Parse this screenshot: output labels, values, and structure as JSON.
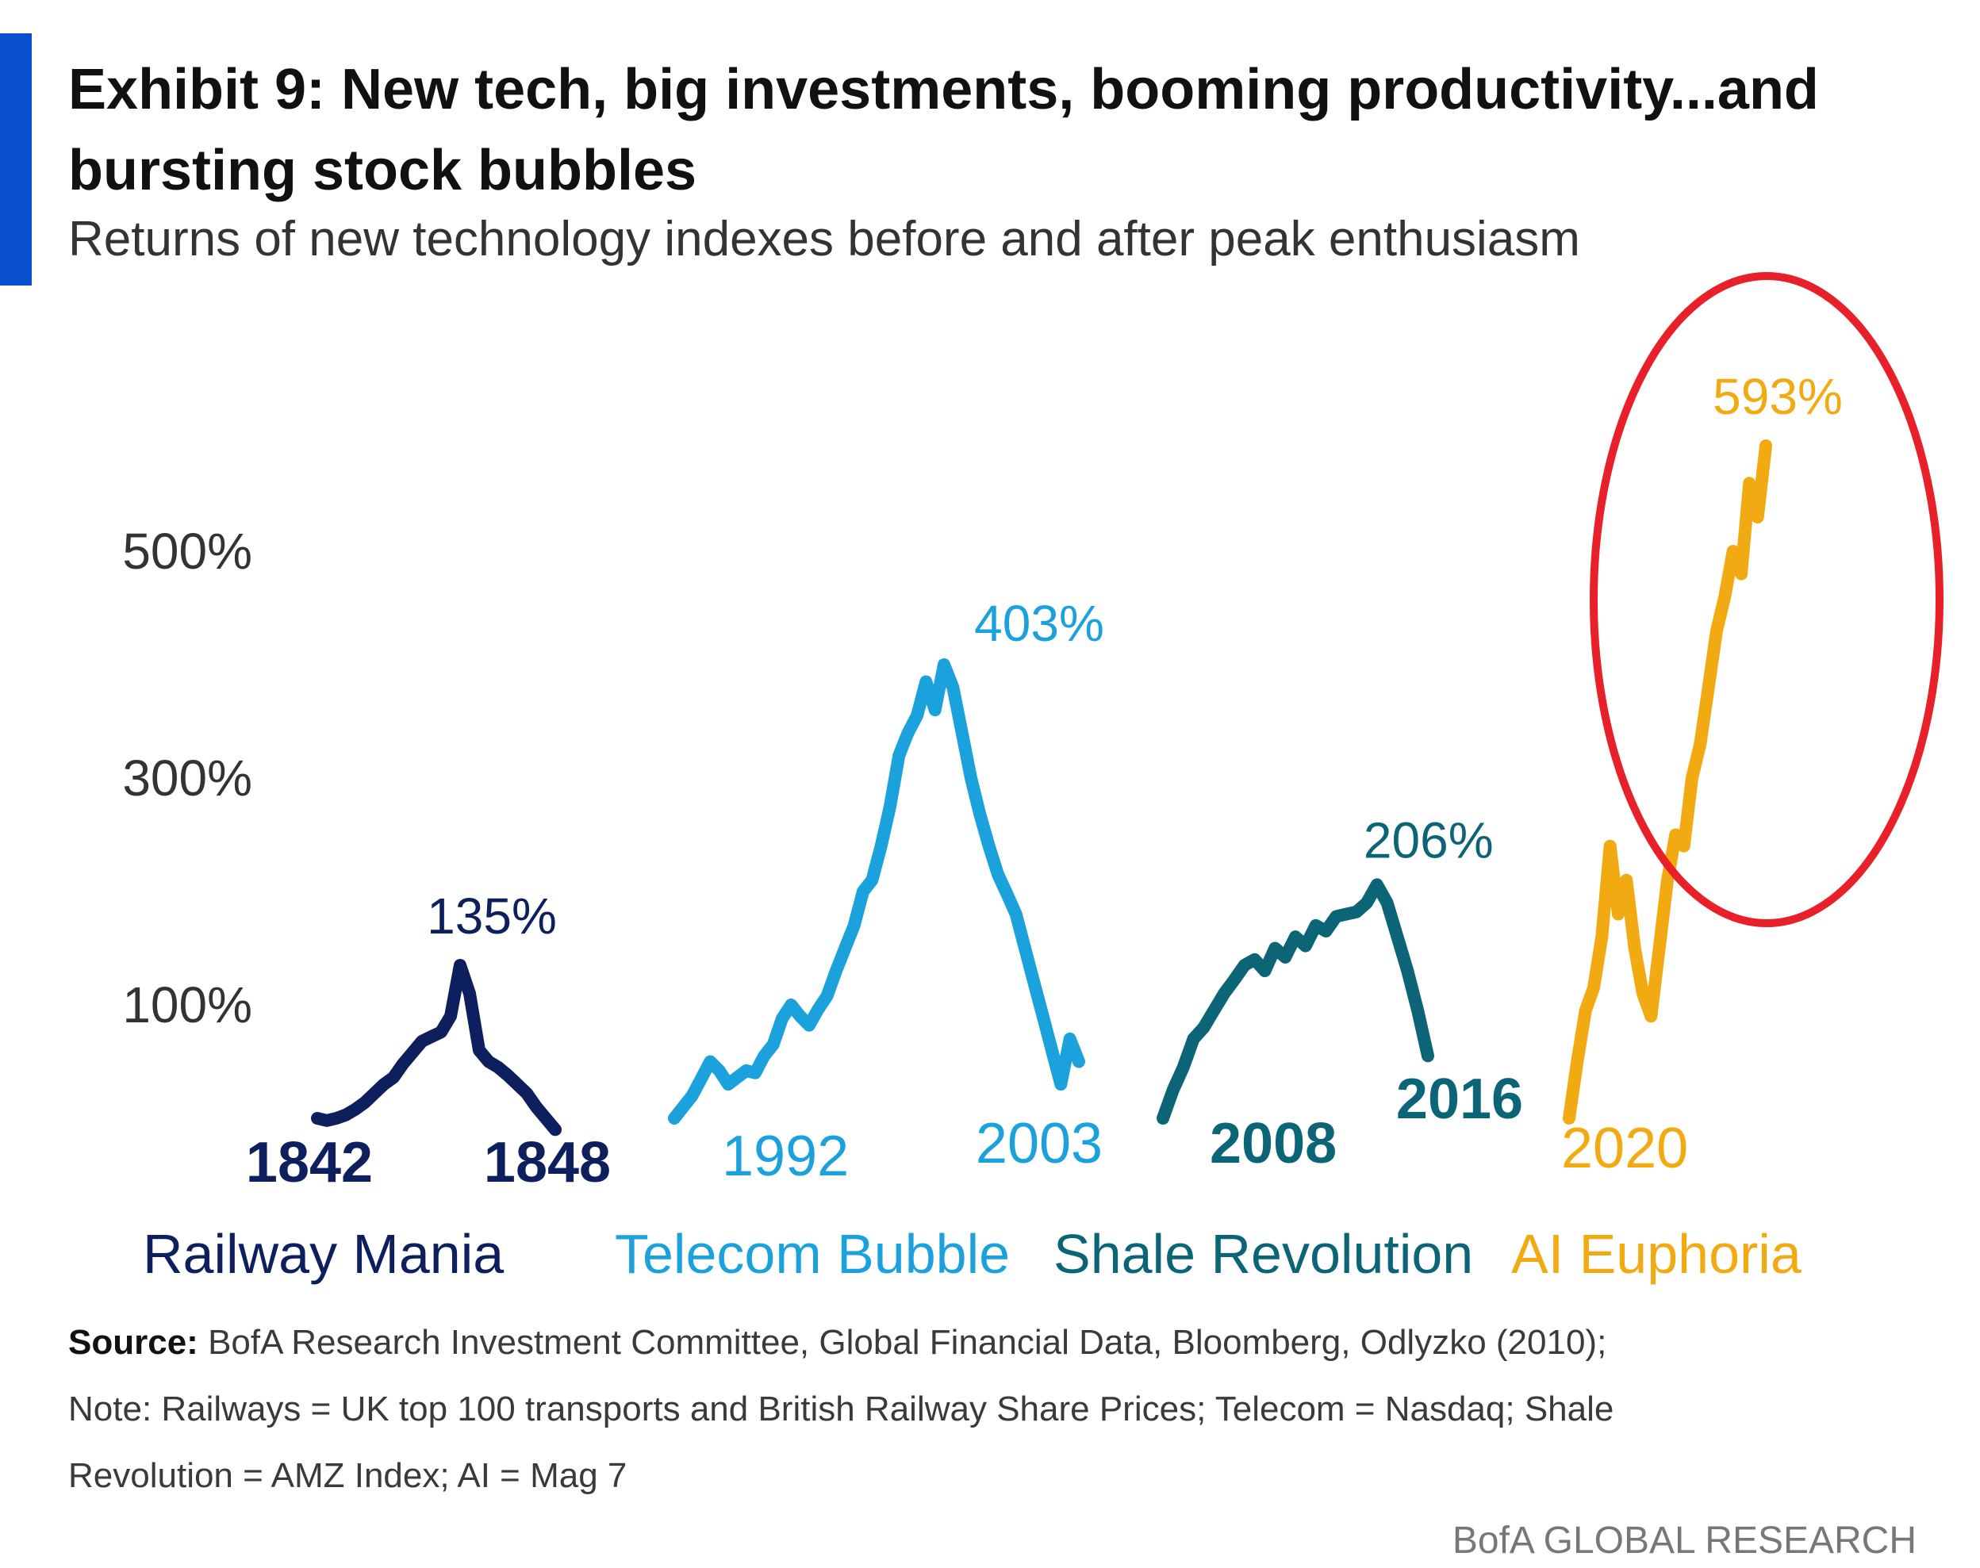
{
  "header": {
    "title": "Exhibit 9: New tech, big investments, booming productivity...and bursting stock bubbles",
    "subtitle": "Returns of new technology indexes before and after peak enthusiasm"
  },
  "footer": {
    "source_label": "Source:",
    "source_text": "BofA Research Investment Committee, Global Financial Data, Bloomberg, Odlyzko (2010);",
    "note_line_1": "Note: Railways = UK top 100 transports and British Railway Share Prices; Telecom = Nasdaq; Shale",
    "note_line_2": "Revolution = AMZ Index; AI = Mag 7",
    "brand": "BofA GLOBAL RESEARCH"
  },
  "chart_data": {
    "type": "line",
    "title": "Exhibit 9: New tech, big investments, booming productivity...and bursting stock bubbles",
    "subtitle": "Returns of new technology indexes before and after peak enthusiasm",
    "y_ticks": [
      "500%",
      "300%",
      "100%"
    ],
    "y_tick_values": [
      500,
      300,
      100
    ],
    "ylim": [
      -50,
      620
    ],
    "grid": false,
    "series": [
      {
        "name": "Railway Mania",
        "color": "#0d1f5c",
        "start_label": "1842",
        "end_label": "1848",
        "peak_label": "135%",
        "values": [
          0,
          -2,
          0,
          3,
          8,
          14,
          22,
          30,
          36,
          48,
          58,
          68,
          72,
          76,
          90,
          135,
          110,
          60,
          50,
          45,
          38,
          30,
          22,
          10,
          0,
          -10
        ]
      },
      {
        "name": "Telecom Bubble",
        "color": "#1ba2dc",
        "start_label": "1992",
        "end_label": "2003",
        "peak_label": "403%",
        "values": [
          0,
          10,
          20,
          35,
          50,
          42,
          30,
          36,
          42,
          40,
          55,
          65,
          88,
          100,
          90,
          82,
          96,
          108,
          130,
          150,
          170,
          200,
          210,
          240,
          275,
          320,
          340,
          355,
          385,
          360,
          400,
          380,
          340,
          300,
          268,
          240,
          215,
          198,
          180,
          150,
          120,
          90,
          60,
          30,
          70,
          50
        ]
      },
      {
        "name": "Shale Revolution",
        "color": "#0b6577",
        "start_label": "2008",
        "end_label": "2016",
        "peak_label": "206%",
        "values": [
          0,
          25,
          45,
          70,
          80,
          95,
          110,
          122,
          135,
          140,
          130,
          150,
          142,
          160,
          152,
          170,
          165,
          178,
          180,
          182,
          190,
          206,
          190,
          160,
          130,
          95,
          55
        ]
      },
      {
        "name": "AI Euphoria",
        "color": "#f2aa12",
        "start_label": "2020",
        "end_label": "",
        "peak_label": "593%",
        "values": [
          0,
          50,
          95,
          115,
          160,
          240,
          180,
          210,
          150,
          110,
          90,
          150,
          210,
          250,
          240,
          300,
          330,
          380,
          430,
          460,
          500,
          480,
          560,
          530,
          593
        ]
      }
    ]
  }
}
